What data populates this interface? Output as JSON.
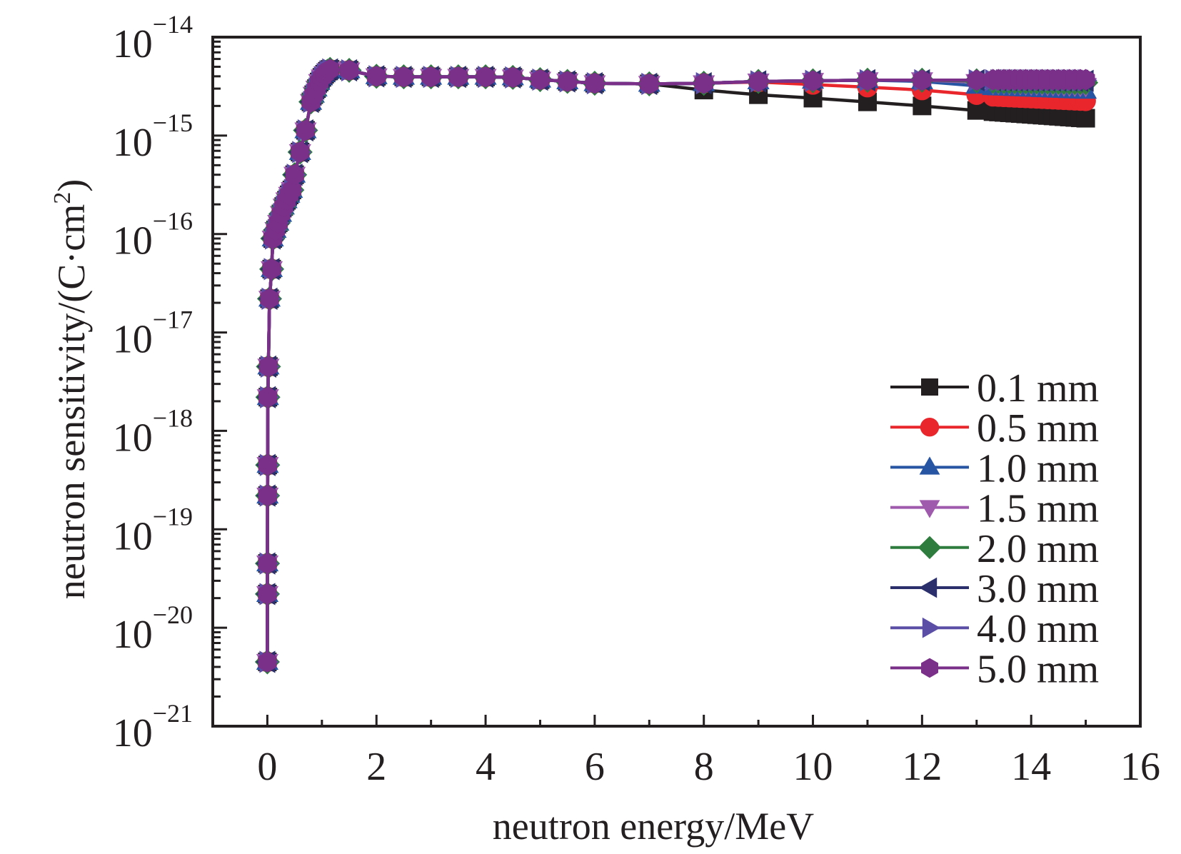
{
  "chart_data": {
    "type": "line",
    "title": "",
    "xlabel": "neutron energy/MeV",
    "ylabel_main": "neutron sensitivity/(C·cm",
    "ylabel_sup": "2",
    "ylabel_tail": ")",
    "ylabel": "neutron sensitivity/(C·cm²)",
    "xlim": [
      -1,
      16
    ],
    "ylim": [
      1e-21,
      1e-14
    ],
    "yscale": "log",
    "grid": false,
    "legend_position": "right",
    "x_ticks": [
      {
        "value": 0,
        "label": "0"
      },
      {
        "value": 2,
        "label": "2"
      },
      {
        "value": 4,
        "label": "4"
      },
      {
        "value": 6,
        "label": "6"
      },
      {
        "value": 8,
        "label": "8"
      },
      {
        "value": 10,
        "label": "10"
      },
      {
        "value": 12,
        "label": "12"
      },
      {
        "value": 14,
        "label": "14"
      },
      {
        "value": 16,
        "label": "16"
      }
    ],
    "y_ticks": [
      {
        "exp": -14,
        "base": "10",
        "sup": "−14"
      },
      {
        "exp": -15,
        "base": "10",
        "sup": "−15"
      },
      {
        "exp": -16,
        "base": "10",
        "sup": "−16"
      },
      {
        "exp": -17,
        "base": "10",
        "sup": "−17"
      },
      {
        "exp": -18,
        "base": "10",
        "sup": "−18"
      },
      {
        "exp": -19,
        "base": "10",
        "sup": "−19"
      },
      {
        "exp": -20,
        "base": "10",
        "sup": "−20"
      },
      {
        "exp": -21,
        "base": "10",
        "sup": "−21"
      }
    ],
    "shared_x": [
      0.0,
      0.001,
      0.002,
      0.004,
      0.006,
      0.01,
      0.02,
      0.04,
      0.08,
      0.1,
      0.15,
      0.2,
      0.25,
      0.3,
      0.35,
      0.4,
      0.45,
      0.5,
      0.6,
      0.7,
      0.8,
      0.85,
      0.9,
      0.95,
      1.0,
      1.05,
      1.1,
      1.15,
      1.5,
      2.0,
      2.5,
      3.0,
      3.5,
      4.0,
      4.5,
      5.0,
      5.5,
      6.0,
      7.0,
      8.0,
      9.0,
      10.0,
      11.0,
      12.0,
      13.0
    ],
    "shared_y": [
      4.5e-21,
      2.2e-20,
      4.5e-20,
      2.2e-19,
      4.5e-19,
      2.2e-18,
      4.5e-18,
      2.2e-17,
      4.4e-17,
      9e-17,
      1.1e-16,
      1.3e-16,
      1.6e-16,
      1.9e-16,
      2.2e-16,
      2.5e-16,
      2.8e-16,
      4e-16,
      6.8e-16,
      1.13e-15,
      2.2e-15,
      2.6e-15,
      3e-15,
      3.5e-15,
      3.9e-15,
      4.2e-15,
      4.5e-15,
      4.7e-15,
      4.6e-15,
      4e-15,
      3.95e-15,
      3.95e-15,
      3.95e-15,
      3.95e-15,
      3.9e-15,
      3.7e-15,
      3.55e-15,
      3.4e-15,
      3.35e-15,
      3.4e-15,
      3.55e-15,
      3.6e-15,
      3.65e-15,
      3.65e-15,
      3.65e-15
    ],
    "tail_x": [
      13.3,
      13.4,
      13.5,
      13.6,
      13.7,
      13.8,
      13.9,
      14.0,
      14.1,
      14.2,
      14.3,
      14.4,
      14.5,
      14.6,
      14.7,
      14.8,
      14.9,
      15.0
    ],
    "series": [
      {
        "name": "0.1 mm",
        "color": "#231f20",
        "marker": "square",
        "tail_from_x": 7.0,
        "high_energy_y": {
          "7.0": 3.35e-15,
          "8.0": 2.9e-15,
          "9.0": 2.6e-15,
          "10.0": 2.4e-15,
          "11.0": 2.2e-15,
          "12.0": 2e-15,
          "13.0": 1.8e-15
        },
        "tail_y_start": 1.75e-15,
        "tail_y_end": 1.5e-15
      },
      {
        "name": "0.5 mm",
        "color": "#e8262b",
        "marker": "circle",
        "tail_from_x": 9.0,
        "high_energy_y": {
          "9.0": 3.5e-15,
          "10.0": 3.3e-15,
          "11.0": 3.1e-15,
          "12.0": 2.9e-15,
          "13.0": 2.6e-15
        },
        "tail_y_start": 2.5e-15,
        "tail_y_end": 2.25e-15
      },
      {
        "name": "1.0 mm",
        "color": "#2755a4",
        "marker": "triangle-up",
        "tail_from_x": 12.0,
        "high_energy_y": {
          "12.0": 3.55e-15,
          "13.0": 3.2e-15
        },
        "tail_y_start": 3.1e-15,
        "tail_y_end": 2.85e-15
      },
      {
        "name": "1.5 mm",
        "color": "#a05aad",
        "marker": "triangle-down",
        "tail_from_x": 13.0,
        "high_energy_y": {
          "13.0": 3.5e-15
        },
        "tail_y_start": 3.4e-15,
        "tail_y_end": 3.2e-15
      },
      {
        "name": "2.0 mm",
        "color": "#2e7d3f",
        "marker": "diamond",
        "tail_from_x": 13.0,
        "high_energy_y": {
          "13.0": 3.6e-15
        },
        "tail_y_start": 3.55e-15,
        "tail_y_end": 3.45e-15
      },
      {
        "name": "3.0 mm",
        "color": "#2b2f6b",
        "marker": "triangle-left",
        "tail_from_x": 13.0,
        "high_energy_y": {
          "13.0": 3.65e-15
        },
        "tail_y_start": 3.65e-15,
        "tail_y_end": 3.6e-15
      },
      {
        "name": "4.0 mm",
        "color": "#5a4ea6",
        "marker": "triangle-right",
        "tail_from_x": 13.0,
        "high_energy_y": {
          "13.0": 3.65e-15
        },
        "tail_y_start": 3.65e-15,
        "tail_y_end": 3.65e-15
      },
      {
        "name": "5.0 mm",
        "color": "#7a2f88",
        "marker": "hexagon",
        "tail_from_x": 13.0,
        "high_energy_y": {
          "13.0": 3.65e-15
        },
        "tail_y_start": 3.7e-15,
        "tail_y_end": 3.7e-15
      }
    ]
  }
}
